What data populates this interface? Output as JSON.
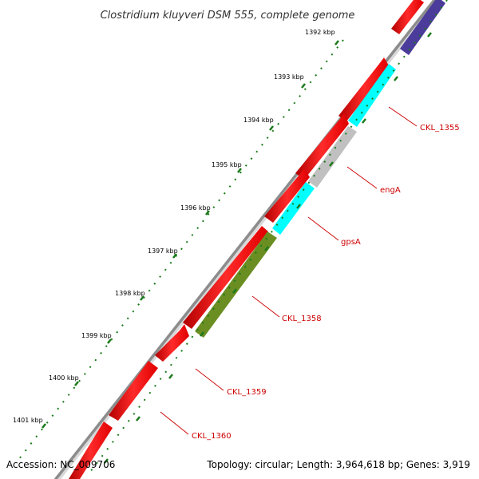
{
  "title": "Clostridium kluyveri DSM 555, complete genome",
  "footer": {
    "accession": "Accession: NC_009706",
    "topology": "Topology: circular; Length: 3,964,618 bp; Genes: 3,919"
  },
  "ruler_labels": [
    "1392 kbp",
    "1393 kbp",
    "1394 kbp",
    "1395 kbp",
    "1396 kbp",
    "1397 kbp",
    "1398 kbp",
    "1399 kbp",
    "1400 kbp",
    "1401 kbp"
  ],
  "colors": {
    "backbone": "#8c8c8c",
    "forward_gene": "#ff0000",
    "other_gene": "#4b3b9a",
    "cyan_gene": "#00ffff",
    "grey_gene": "#c0c0c0",
    "green_gene": "#6b8e23",
    "tick": "#1a7a1a",
    "label": "#cc0000"
  },
  "gene_labels": [
    "CKL_1355",
    "engA",
    "gpsA",
    "CKL_1358",
    "CKL_1359",
    "CKL_1360"
  ]
}
